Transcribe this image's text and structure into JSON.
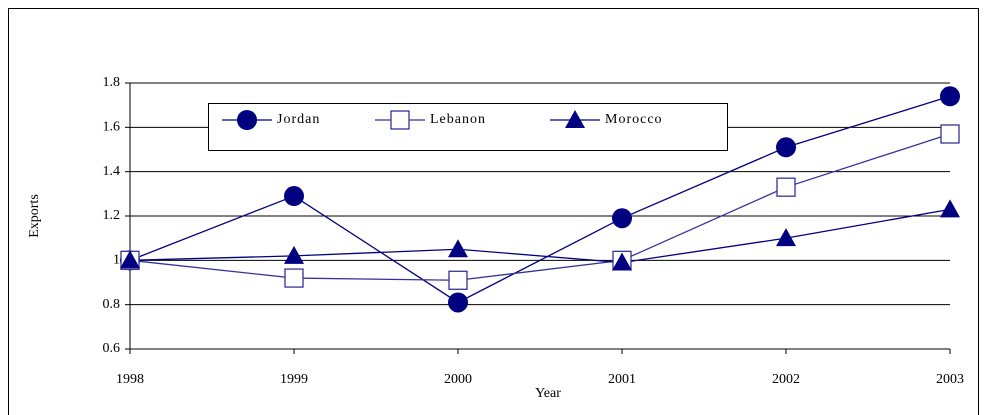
{
  "chart_data": {
    "type": "line",
    "x": [
      1998,
      1999,
      2000,
      2001,
      2002,
      2003
    ],
    "xlim": [
      1998,
      2003
    ],
    "xticks": [
      1998,
      1999,
      2000,
      2001,
      2002,
      2003
    ],
    "ylim": [
      0.6,
      1.8
    ],
    "yticks": [
      0.6,
      0.8,
      1,
      1.2,
      1.4,
      1.6,
      1.8
    ],
    "xlabel": "Year",
    "ylabel": "Exports",
    "grid": true,
    "legend": "top",
    "series": [
      {
        "name": "Jordan",
        "color": "#000080",
        "marker": "circle",
        "values": [
          1,
          1.29,
          0.81,
          1.19,
          1.51,
          1.74
        ]
      },
      {
        "name": "Lebanon",
        "color": "#333399",
        "marker": "square",
        "values": [
          1,
          0.92,
          0.91,
          1.0,
          1.33,
          1.57
        ]
      },
      {
        "name": "Morocco",
        "color": "#000080",
        "marker": "triangle",
        "values": [
          1,
          1.02,
          1.05,
          0.99,
          1.1,
          1.23
        ]
      }
    ]
  }
}
